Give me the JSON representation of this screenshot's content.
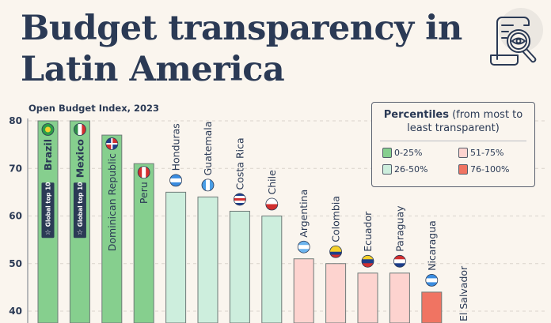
{
  "title_line1": "Budget transparency in",
  "title_line2": "Latin America",
  "chart_data": {
    "type": "bar",
    "title": "Budget transparency in Latin America",
    "ylabel": "Open Budget Index, 2023",
    "ylim": [
      40,
      80
    ],
    "yticks": [
      40,
      50,
      60,
      70,
      80
    ],
    "grid": true,
    "legend_placement": "top-right",
    "categories": [
      "Brazil",
      "Mexico",
      "Dominican Republic",
      "Peru",
      "Honduras",
      "Guatemala",
      "Costa Rica",
      "Chile",
      "Argentina",
      "Colombia",
      "Ecuador",
      "Paraguay",
      "Nicaragua",
      "El Salvador"
    ],
    "values": [
      80,
      80,
      77,
      71,
      65,
      64,
      61,
      60,
      51,
      50,
      48,
      48,
      44,
      null
    ],
    "percentile_group": [
      "0-25%",
      "0-25%",
      "0-25%",
      "0-25%",
      "26-50%",
      "26-50%",
      "26-50%",
      "26-50%",
      "51-75%",
      "51-75%",
      "51-75%",
      "51-75%",
      "76-100%",
      "76-100%"
    ],
    "badges": {
      "Brazil": "Global top 10",
      "Mexico": "Global top 10"
    }
  },
  "legend": {
    "title_bold": "Percentiles",
    "title_rest": " (from most to least transparent)",
    "items": [
      {
        "label": "0-25%",
        "color": "#86cf8e"
      },
      {
        "label": "51-75%",
        "color": "#fdd3cf"
      },
      {
        "label": "26-50%",
        "color": "#cdeedd"
      },
      {
        "label": "76-100%",
        "color": "#f07462"
      }
    ]
  },
  "colors": {
    "0-25%": "#86cf8e",
    "26-50%": "#cdeedd",
    "51-75%": "#fdd3cf",
    "76-100%": "#f07462",
    "text": "#2b3a55",
    "badge": "#2b3a55"
  },
  "flags": {
    "Brazil": {
      "dir": "h",
      "stripes": [
        "#2f9e47"
      ],
      "dot": "#f2d02e"
    },
    "Mexico": {
      "dir": "v",
      "stripes": [
        "#2f8f4a",
        "#ffffff",
        "#d22f2f"
      ]
    },
    "Dominican Republic": {
      "dir": "q",
      "stripes": [
        "#1d3e8a",
        "#d22f2f"
      ]
    },
    "Peru": {
      "dir": "v",
      "stripes": [
        "#d22f2f",
        "#ffffff",
        "#d22f2f"
      ]
    },
    "Honduras": {
      "dir": "h",
      "stripes": [
        "#3b8de0",
        "#ffffff",
        "#3b8de0"
      ]
    },
    "Guatemala": {
      "dir": "v",
      "stripes": [
        "#4a9ee6",
        "#ffffff",
        "#4a9ee6"
      ]
    },
    "Costa Rica": {
      "dir": "h",
      "stripes": [
        "#1d3e8a",
        "#ffffff",
        "#d22f2f",
        "#ffffff",
        "#1d3e8a"
      ]
    },
    "Chile": {
      "dir": "h",
      "stripes": [
        "#ffffff",
        "#d22f2f"
      ]
    },
    "Argentina": {
      "dir": "h",
      "stripes": [
        "#6cb4ee",
        "#ffffff",
        "#6cb4ee"
      ]
    },
    "Colombia": {
      "dir": "h",
      "stripes": [
        "#f5d02a",
        "#f5d02a",
        "#1d3e8a",
        "#d22f2f"
      ]
    },
    "Ecuador": {
      "dir": "h",
      "stripes": [
        "#f5d02a",
        "#1d3e8a",
        "#d22f2f"
      ]
    },
    "Paraguay": {
      "dir": "h",
      "stripes": [
        "#d22f2f",
        "#ffffff",
        "#1d3e8a"
      ]
    },
    "Nicaragua": {
      "dir": "h",
      "stripes": [
        "#3b8de0",
        "#ffffff",
        "#3b8de0"
      ]
    },
    "El Salvador": {
      "dir": "h",
      "stripes": [
        "#1d3e8a",
        "#ffffff",
        "#1d3e8a"
      ]
    }
  }
}
